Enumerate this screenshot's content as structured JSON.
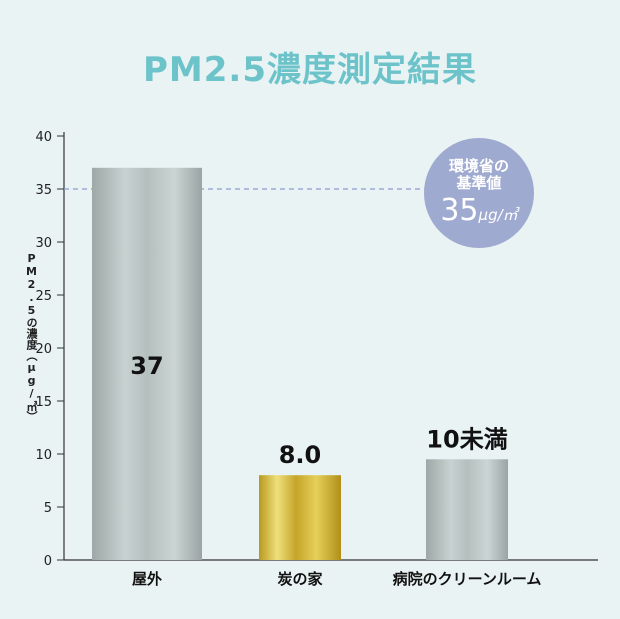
{
  "page": {
    "title": "PM2.5濃度測定結果"
  },
  "reference": {
    "line1": "環境省の",
    "line2": "基準値",
    "value": "35",
    "unit": "µg/㎥"
  },
  "chart_data": {
    "type": "bar",
    "title": "PM2.5濃度測定結果",
    "ylabel": "PM2.5の濃度（µg/㎥）",
    "xlabel": "",
    "categories": [
      "屋外",
      "炭の家",
      "病院のクリーンルーム"
    ],
    "values": [
      37,
      8.0,
      9.5
    ],
    "data_labels": [
      "37",
      "8.0",
      "10未満"
    ],
    "ylim": [
      0,
      40
    ],
    "yticks": [
      0,
      5,
      10,
      15,
      20,
      25,
      30,
      35,
      40
    ],
    "reference_line": 35,
    "grid": false,
    "colors": {
      "bar_gray": "#a9b3b2",
      "bar_gold": "#d2b43a",
      "reference": "#8e9bd0",
      "axis": "#333333"
    }
  }
}
